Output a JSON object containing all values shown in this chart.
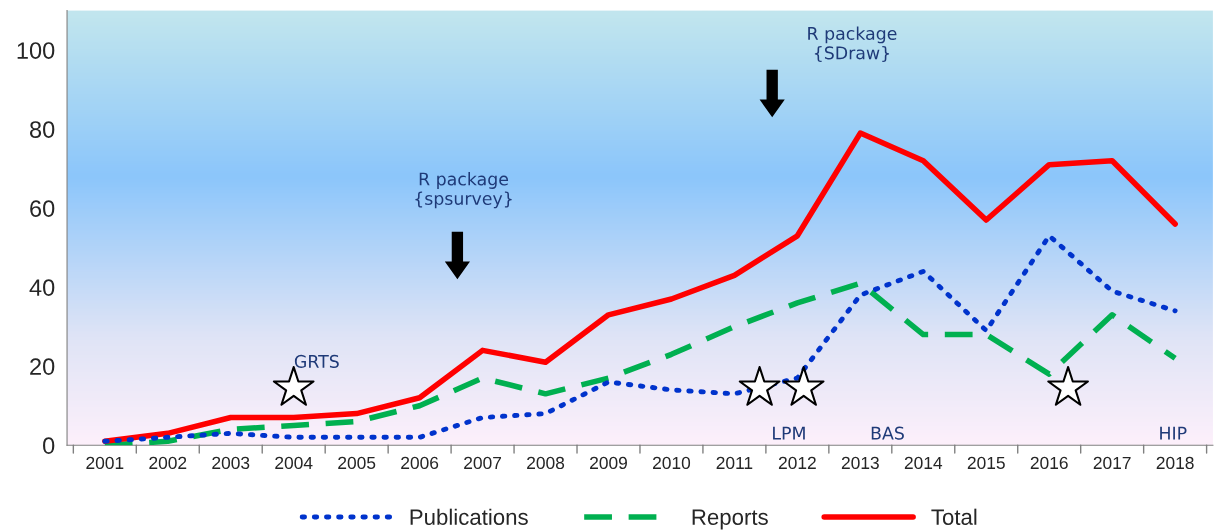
{
  "chart_data": {
    "type": "line",
    "categories": [
      "2001",
      "2002",
      "2003",
      "2004",
      "2005",
      "2006",
      "2007",
      "2008",
      "2009",
      "2010",
      "2011",
      "2012",
      "2013",
      "2014",
      "2015",
      "2016",
      "2017",
      "2018"
    ],
    "series": [
      {
        "name": "Publications",
        "color": "#0033cc",
        "line_style": "dotted",
        "values": [
          1,
          2,
          3,
          2,
          2,
          2,
          7,
          8,
          16,
          14,
          13,
          17,
          38,
          44,
          29,
          53,
          39,
          34
        ]
      },
      {
        "name": "Reports",
        "color": "#00b050",
        "line_style": "dashed",
        "values": [
          0,
          1,
          4,
          5,
          6,
          10,
          17,
          13,
          17,
          23,
          30,
          36,
          41,
          28,
          28,
          18,
          33,
          22
        ]
      },
      {
        "name": "Total",
        "color": "#ff0000",
        "line_style": "solid",
        "values": [
          1,
          3,
          7,
          7,
          8,
          12,
          24,
          21,
          33,
          37,
          43,
          53,
          79,
          72,
          57,
          71,
          72,
          56
        ]
      }
    ],
    "ylim": [
      0,
      110
    ],
    "yticks": [
      0,
      20,
      40,
      60,
      80,
      100
    ],
    "grid": false,
    "legend": "bottom",
    "marker": "none",
    "annotations": [
      "GRTS",
      "R package\n{spsurvey}",
      "R package\n{SDraw}",
      "LPM",
      "BAS",
      "HIP"
    ]
  }
}
